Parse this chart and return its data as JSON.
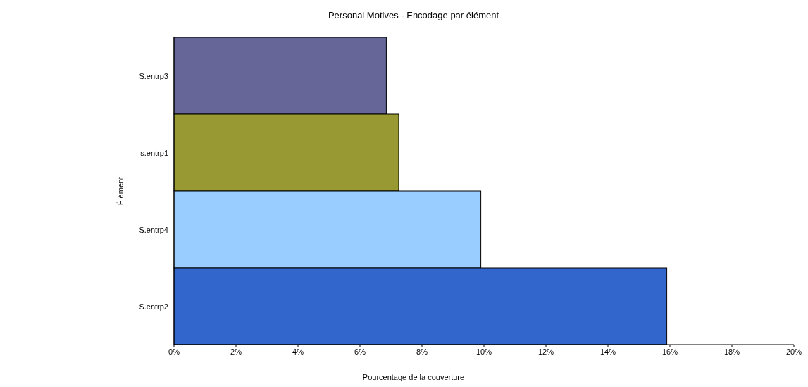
{
  "chart_data": {
    "type": "bar",
    "orientation": "horizontal",
    "title": "Personal Motives - Encodage par élément",
    "xlabel": "Pourcentage de la couverture",
    "ylabel": "Élément",
    "categories": [
      "S.entrp3",
      "s.entrp1",
      "S.entrp4",
      "S.entrp2"
    ],
    "values": [
      6.85,
      7.25,
      9.9,
      15.9
    ],
    "colors": [
      "#666699",
      "#999933",
      "#99ccff",
      "#3366cc"
    ],
    "xlim": [
      0,
      20
    ],
    "xticks": [
      {
        "value": 0,
        "label": "0%"
      },
      {
        "value": 2,
        "label": "2%"
      },
      {
        "value": 4,
        "label": "4%"
      },
      {
        "value": 6,
        "label": "6%"
      },
      {
        "value": 8,
        "label": "8%"
      },
      {
        "value": 10,
        "label": "10%"
      },
      {
        "value": 12,
        "label": "12%"
      },
      {
        "value": 14,
        "label": "14%"
      },
      {
        "value": 16,
        "label": "16%"
      },
      {
        "value": 18,
        "label": "18%"
      },
      {
        "value": 20,
        "label": "20%"
      }
    ],
    "grid": false
  }
}
